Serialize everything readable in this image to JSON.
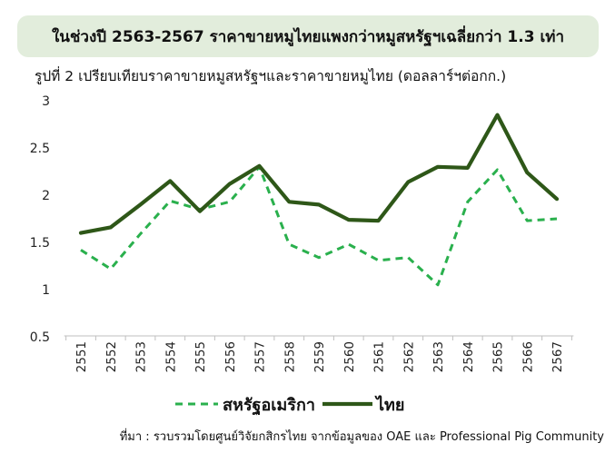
{
  "banner": {
    "title": "ในช่วงปี 2563-2567 ราคาขายหมูไทยแพงกว่าหมูสหรัฐฯเฉลี่ยกว่า 1.3 เท่า"
  },
  "figure": {
    "subtitle": "รูปที่ 2 เปรียบเทียบราคาขายหมูสหรัฐฯและราคาขายหมูไทย (ดอลลาร์ฯต่อกก.)"
  },
  "source": {
    "text": "ที่มา : รวบรวมโดยศูนย์วิจัยกสิกรไทย จากข้อมูลของ OAE และ Professional Pig Community"
  },
  "chart_data": {
    "type": "line",
    "title": "รูปที่ 2 เปรียบเทียบราคาขายหมูสหรัฐฯและราคาขายหมูไทย (ดอลลาร์ฯต่อกก.)",
    "xlabel": "",
    "ylabel": "",
    "categories": [
      "2551",
      "2552",
      "2553",
      "2554",
      "2555",
      "2556",
      "2557",
      "2558",
      "2559",
      "2560",
      "2561",
      "2562",
      "2563",
      "2564",
      "2565",
      "2566",
      "2567"
    ],
    "ylim": [
      0.5,
      3
    ],
    "yticks": [
      "0.5",
      "1",
      "1.5",
      "2",
      "2.5",
      "3"
    ],
    "grid": false,
    "legend": "bottom",
    "series": [
      {
        "name": "สหรัฐอเมริกา",
        "color": "#2ab04d",
        "style": "dashed",
        "values": [
          1.41,
          1.21,
          1.58,
          1.93,
          1.84,
          1.92,
          2.29,
          1.47,
          1.33,
          1.47,
          1.3,
          1.33,
          1.04,
          1.92,
          2.26,
          1.72,
          1.74
        ]
      },
      {
        "name": "ไทย",
        "color": "#2e5718",
        "style": "solid",
        "values": [
          1.59,
          1.65,
          1.89,
          2.14,
          1.82,
          2.11,
          2.3,
          1.92,
          1.89,
          1.73,
          1.72,
          2.13,
          2.29,
          2.28,
          2.84,
          2.23,
          1.95
        ]
      }
    ]
  }
}
